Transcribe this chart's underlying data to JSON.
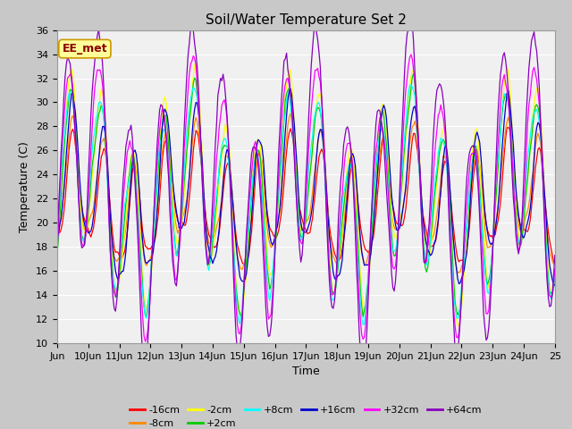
{
  "title": "Soil/Water Temperature Set 2",
  "xlabel": "Time",
  "ylabel": "Temperature (C)",
  "ylim": [
    10,
    36
  ],
  "yticks": [
    10,
    12,
    14,
    16,
    18,
    20,
    22,
    24,
    26,
    28,
    30,
    32,
    34,
    36
  ],
  "plot_bg": "#f0f0f0",
  "fig_bg": "#c8c8c8",
  "annotation_text": "EE_met",
  "annotation_color": "#8B0000",
  "annotation_bg": "#ffff99",
  "series": [
    {
      "label": "-16cm",
      "color": "#ff0000"
    },
    {
      "label": "-8cm",
      "color": "#ff8800"
    },
    {
      "label": "-2cm",
      "color": "#ffff00"
    },
    {
      "label": "+2cm",
      "color": "#00cc00"
    },
    {
      "label": "+8cm",
      "color": "#00ffff"
    },
    {
      "label": "+16cm",
      "color": "#0000cc"
    },
    {
      "label": "+32cm",
      "color": "#ff00ff"
    },
    {
      "label": "+64cm",
      "color": "#8800bb"
    }
  ],
  "xtick_labels": [
    "Jun",
    "10Jun",
    "11Jun",
    "12Jun",
    "13Jun",
    "14Jun",
    "15Jun",
    "16Jun",
    "17Jun",
    "18Jun",
    "19Jun",
    "20Jun",
    "21Jun",
    "22Jun",
    "23Jun",
    "24Jun",
    "25"
  ],
  "xtick_positions": [
    0,
    24,
    48,
    72,
    96,
    120,
    144,
    168,
    192,
    216,
    240,
    264,
    288,
    312,
    336,
    360,
    384
  ]
}
